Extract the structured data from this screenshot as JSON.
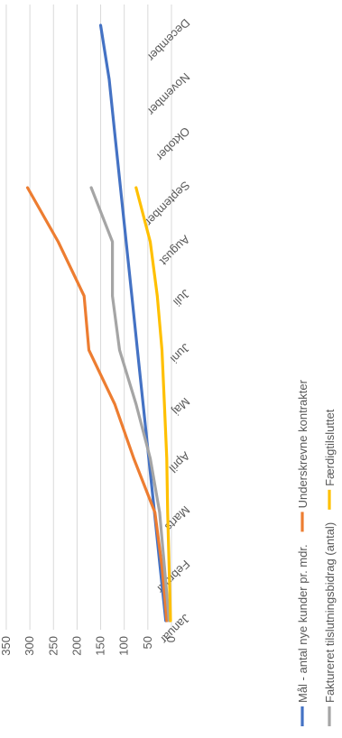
{
  "chart_data": {
    "type": "line",
    "title": "",
    "xlabel": "",
    "ylabel": "",
    "categories": [
      "Januar",
      "Februar",
      "Marts",
      "April",
      "Maj",
      "Juni",
      "Juli",
      "August",
      "September",
      "Oktober",
      "November",
      "December"
    ],
    "ylim": [
      0,
      350
    ],
    "yticks": [
      0,
      50,
      100,
      150,
      200,
      250,
      300,
      350
    ],
    "grid": true,
    "legend_position": "bottom",
    "series": [
      {
        "name": "Mål - antal nye kunder pr. mdr.",
        "color": "#4472C4",
        "values": [
          12,
          24,
          36,
          48,
          60,
          72,
          84,
          96,
          108,
          120,
          132,
          150
        ]
      },
      {
        "name": "Underskrevne kontrakter",
        "color": "#ED7D31",
        "values": [
          10,
          20,
          35,
          80,
          120,
          175,
          185,
          240,
          305,
          null,
          null,
          null
        ]
      },
      {
        "name": "Faktureret tilslutningsbidrag (antal)",
        "color": "#A5A5A5",
        "values": [
          5,
          15,
          25,
          45,
          75,
          110,
          125,
          125,
          170,
          null,
          null,
          null
        ]
      },
      {
        "name": "Færdigtilsluttet",
        "color": "#FFC000",
        "values": [
          2,
          5,
          8,
          10,
          15,
          20,
          30,
          45,
          75,
          null,
          null,
          null
        ]
      }
    ]
  }
}
